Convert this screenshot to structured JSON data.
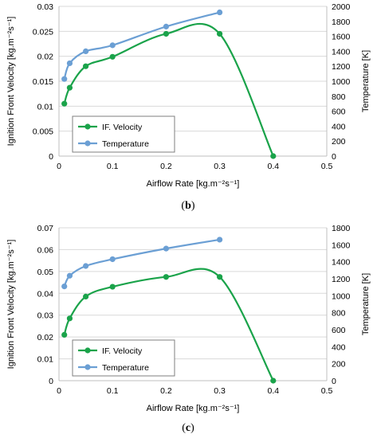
{
  "colors": {
    "velocity": "#1aa34a",
    "temperature": "#6b9fd4",
    "axis": "#bfbfbf",
    "grid": "#d9d9d9",
    "legend_border": "#7f7f7f"
  },
  "chart_data": [
    {
      "type": "line",
      "caption_letter": "b",
      "caption_full": "(b)",
      "xlabel": "Airflow Rate [kg.m⁻²s⁻¹]",
      "ylabel": "Ignition Front Velocity [kg.m⁻²s⁻¹]",
      "y2label": "Temperature [K]",
      "xlim": [
        0,
        0.5
      ],
      "xticks": [
        0,
        0.1,
        0.2,
        0.3,
        0.4,
        0.5
      ],
      "xtick_labels": [
        "0",
        "0.1",
        "0.2",
        "0.3",
        "0.4",
        "0.5"
      ],
      "ylim": [
        0,
        0.03
      ],
      "yticks": [
        0,
        0.005,
        0.01,
        0.015,
        0.02,
        0.025,
        0.03
      ],
      "ytick_labels": [
        "0",
        "0.005",
        "0.01",
        "0.015",
        "0.02",
        "0.025",
        "0.03"
      ],
      "y2lim": [
        0,
        2000
      ],
      "y2ticks": [
        0,
        200,
        400,
        600,
        800,
        1000,
        1200,
        1400,
        1600,
        1800,
        2000
      ],
      "y2tick_labels": [
        "0",
        "200",
        "400",
        "600",
        "800",
        "1000",
        "1200",
        "1400",
        "1600",
        "1800",
        "2000"
      ],
      "grid": "horizontal",
      "legend_position": "lower-left",
      "series": [
        {
          "name": "IF. Velocity",
          "axis": "left",
          "color_key": "velocity",
          "x": [
            0.01,
            0.02,
            0.05,
            0.1,
            0.2,
            0.3,
            0.4
          ],
          "y": [
            0.0105,
            0.0137,
            0.018,
            0.0199,
            0.0245,
            0.0245,
            0.0
          ]
        },
        {
          "name": "Temperature",
          "axis": "right",
          "color_key": "temperature",
          "x": [
            0.01,
            0.02,
            0.05,
            0.1,
            0.2,
            0.3
          ],
          "y": [
            1030,
            1240,
            1400,
            1480,
            1730,
            1920
          ]
        }
      ]
    },
    {
      "type": "line",
      "caption_letter": "c",
      "caption_full": "(c)",
      "xlabel": "Airflow Rate [kg.m⁻²s⁻¹]",
      "ylabel": "Ignition Front Velocity [kg.m⁻²s⁻¹]",
      "y2label": "Temperature [K]",
      "xlim": [
        0,
        0.5
      ],
      "xticks": [
        0,
        0.1,
        0.2,
        0.3,
        0.4,
        0.5
      ],
      "xtick_labels": [
        "0",
        "0.1",
        "0.2",
        "0.3",
        "0.4",
        "0.5"
      ],
      "ylim": [
        0,
        0.07
      ],
      "yticks": [
        0,
        0.01,
        0.02,
        0.03,
        0.04,
        0.05,
        0.06,
        0.07
      ],
      "ytick_labels": [
        "0",
        "0.01",
        "0.02",
        "0.03",
        "0.04",
        "0.05",
        "0.06",
        "0.07"
      ],
      "y2lim": [
        0,
        1800
      ],
      "y2ticks": [
        0,
        200,
        400,
        600,
        800,
        1000,
        1200,
        1400,
        1600,
        1800
      ],
      "y2tick_labels": [
        "0",
        "200",
        "400",
        "600",
        "800",
        "1000",
        "1200",
        "1400",
        "1600",
        "1800"
      ],
      "grid": "horizontal",
      "legend_position": "lower-left",
      "series": [
        {
          "name": "IF. Velocity",
          "axis": "left",
          "color_key": "velocity",
          "x": [
            0.01,
            0.02,
            0.05,
            0.1,
            0.2,
            0.3,
            0.4
          ],
          "y": [
            0.021,
            0.0285,
            0.0385,
            0.043,
            0.0475,
            0.0475,
            0.0
          ]
        },
        {
          "name": "Temperature",
          "axis": "right",
          "color_key": "temperature",
          "x": [
            0.01,
            0.02,
            0.05,
            0.1,
            0.2,
            0.3
          ],
          "y": [
            1110,
            1235,
            1350,
            1430,
            1555,
            1660
          ]
        }
      ]
    }
  ]
}
